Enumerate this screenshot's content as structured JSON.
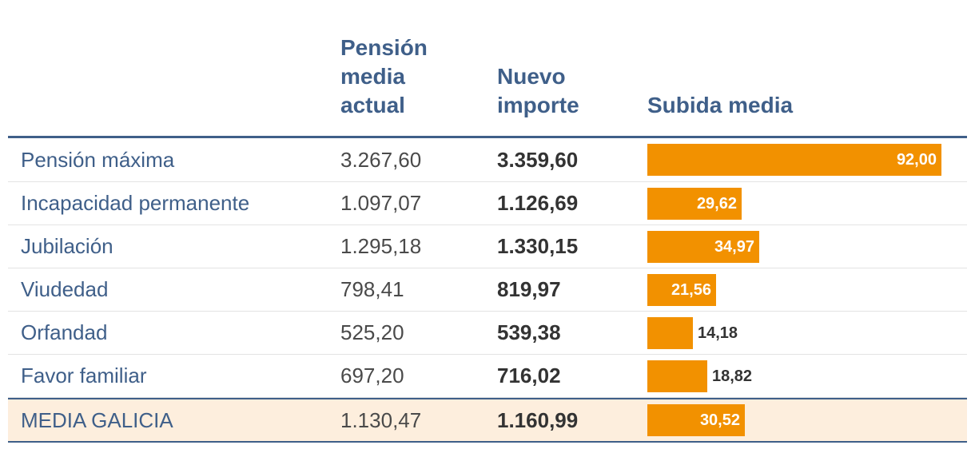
{
  "colors": {
    "header_text": "#3f5f89",
    "bar": "#f29100",
    "total_row_bg": "#fdeedd"
  },
  "chart_data": {
    "type": "table",
    "columns": [
      "",
      "Pensión media actual",
      "Nuevo importe",
      "Subida media"
    ],
    "header_lines": {
      "current": [
        "Pensión",
        "media",
        "actual"
      ],
      "new": [
        "Nuevo",
        "importe"
      ],
      "increase": [
        "Subida media"
      ]
    },
    "bar_max": 92.0,
    "rows": [
      {
        "label": "Pensión máxima",
        "current": "3.267,60",
        "new": "3.359,60",
        "increase": 92.0,
        "increase_label": "92,00",
        "label_inside": true
      },
      {
        "label": "Incapacidad permanente",
        "current": "1.097,07",
        "new": "1.126,69",
        "increase": 29.62,
        "increase_label": "29,62",
        "label_inside": true
      },
      {
        "label": "Jubilación",
        "current": "1.295,18",
        "new": "1.330,15",
        "increase": 34.97,
        "increase_label": "34,97",
        "label_inside": true
      },
      {
        "label": "Viudedad",
        "current": "798,41",
        "new": "819,97",
        "increase": 21.56,
        "increase_label": "21,56",
        "label_inside": true
      },
      {
        "label": "Orfandad",
        "current": "525,20",
        "new": "539,38",
        "increase": 14.18,
        "increase_label": "14,18",
        "label_inside": false
      },
      {
        "label": "Favor familiar",
        "current": "697,20",
        "new": "716,02",
        "increase": 18.82,
        "increase_label": "18,82",
        "label_inside": false
      },
      {
        "label": "MEDIA GALICIA",
        "current": "1.130,47",
        "new": "1.160,99",
        "increase": 30.52,
        "increase_label": "30,52",
        "label_inside": true,
        "total": true
      }
    ]
  }
}
